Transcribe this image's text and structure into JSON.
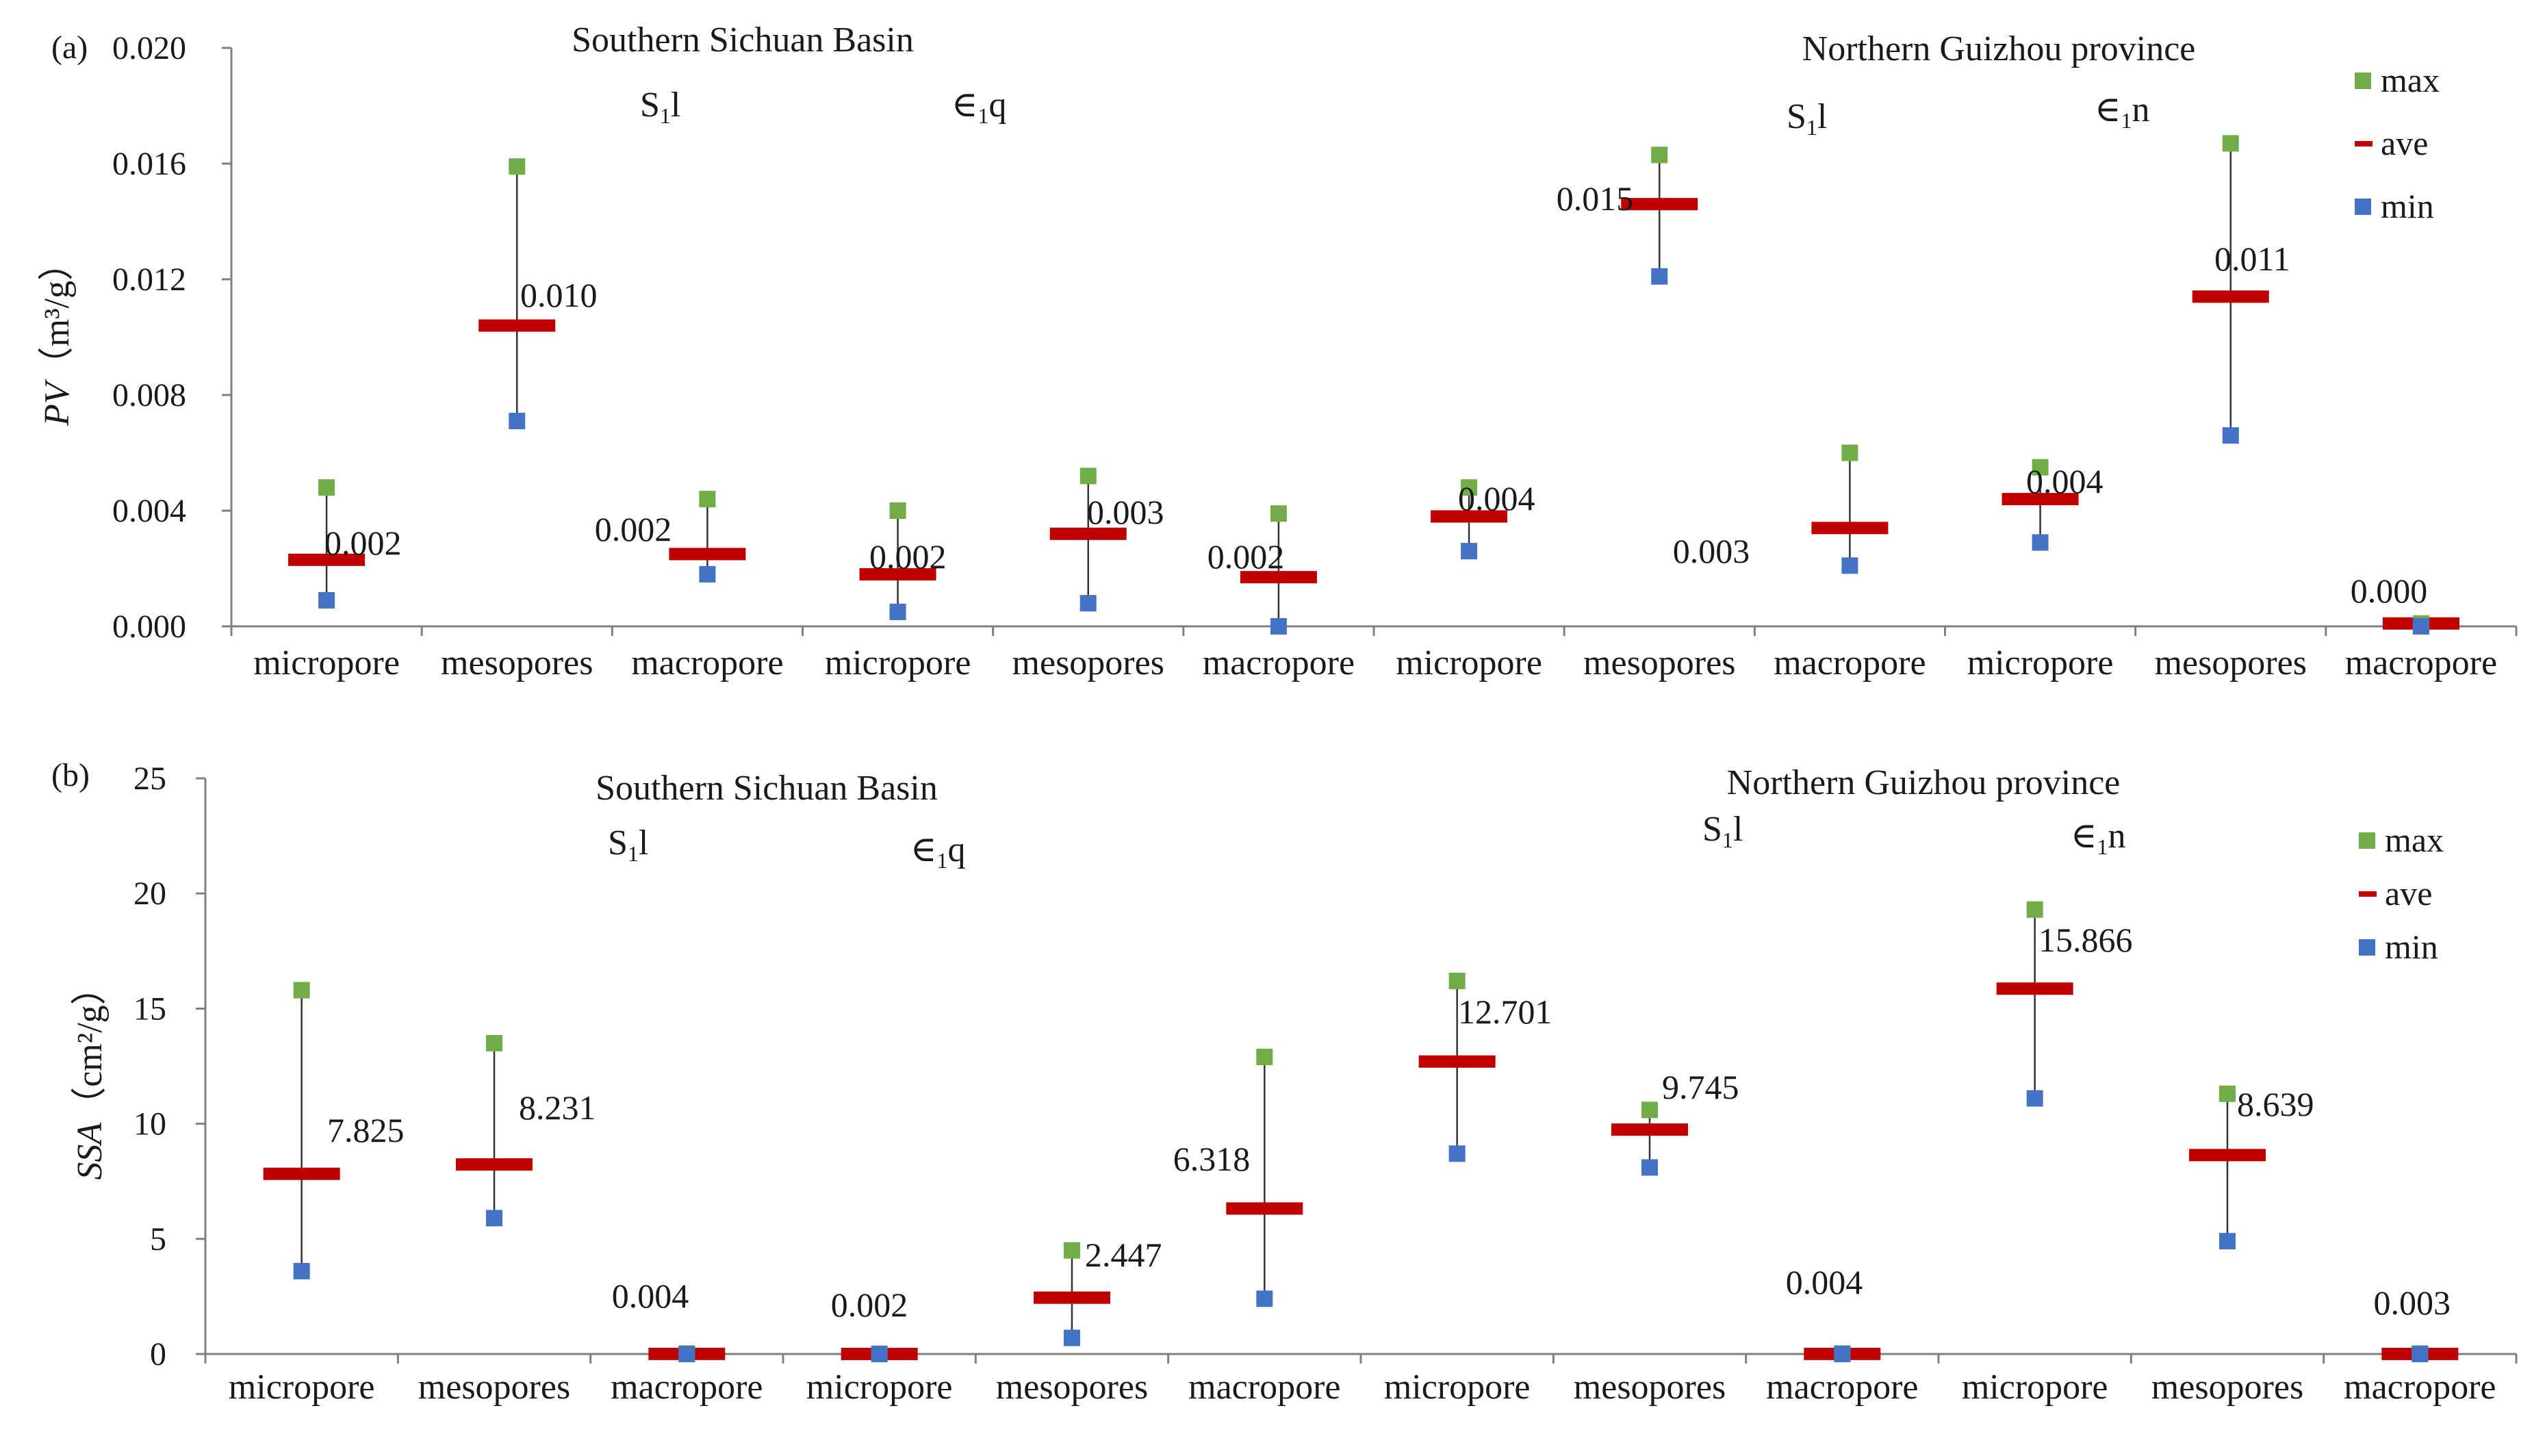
{
  "colors": {
    "max": "#70ad47",
    "ave": "#c00000",
    "min": "#4472c4",
    "axis": "#7f7f7f",
    "whisker": "#333333"
  },
  "chart_data": [
    {
      "type": "range",
      "panel_label": "(a)",
      "ylabel_italic": "PV",
      "ylabel_unit": "（m³/g）",
      "ylim": [
        0,
        0.02
      ],
      "ytick_values": [
        0,
        0.004,
        0.008,
        0.012,
        0.016,
        0.02
      ],
      "ytick_labels": [
        "0.000",
        "0.004",
        "0.008",
        "0.012",
        "0.016",
        "0.020"
      ],
      "region_labels": [
        "Southern Sichuan Basin",
        "Northern Guizhou province"
      ],
      "formation_labels": [
        {
          "main": "S",
          "sub": "1",
          "rest": "l"
        },
        {
          "main": "∈",
          "sub": "1",
          "rest": "q"
        },
        {
          "main": "S",
          "sub": "1",
          "rest": "l"
        },
        {
          "main": "∈",
          "sub": "1",
          "rest": "n"
        }
      ],
      "legend": [
        "max",
        "ave",
        "min"
      ],
      "categories": [
        "micropore",
        "mesopores",
        "macropore",
        "micropore",
        "mesopores",
        "macropore",
        "micropore",
        "mesopores",
        "macropore",
        "micropore",
        "mesopores",
        "macropore"
      ],
      "max": [
        0.0048,
        0.0159,
        0.0044,
        0.004,
        0.0052,
        0.0039,
        0.0048,
        0.0163,
        0.006,
        0.0055,
        0.0167,
        0.0001
      ],
      "ave": [
        0.0023,
        0.0104,
        0.0025,
        0.0018,
        0.0032,
        0.0017,
        0.0038,
        0.0146,
        0.0034,
        0.0044,
        0.0114,
        0.0001
      ],
      "min": [
        0.0009,
        0.0071,
        0.0018,
        0.0005,
        0.0008,
        0.0,
        0.0026,
        0.0121,
        0.0021,
        0.0029,
        0.0066,
        0.0
      ],
      "labels": [
        "0.002",
        "0.010",
        "0.002",
        "0.002",
        "0.003",
        "0.002",
        "0.004",
        "0.015",
        "0.003",
        "0.004",
        "0.011",
        "0.000"
      ]
    },
    {
      "type": "range",
      "panel_label": "(b)",
      "ylabel_italic": "SSA",
      "ylabel_unit": "（cm²/g）",
      "ylim": [
        0,
        25
      ],
      "ytick_values": [
        0,
        5,
        10,
        15,
        20,
        25
      ],
      "ytick_labels": [
        "0",
        "5",
        "10",
        "15",
        "20",
        "25"
      ],
      "region_labels": [
        "Southern Sichuan Basin",
        "Northern Guizhou province"
      ],
      "formation_labels": [
        {
          "main": "S",
          "sub": "1",
          "rest": "l"
        },
        {
          "main": "∈",
          "sub": "1",
          "rest": "q"
        },
        {
          "main": "S",
          "sub": "1",
          "rest": "l"
        },
        {
          "main": "∈",
          "sub": "1",
          "rest": "n"
        }
      ],
      "legend": [
        "max",
        "ave",
        "min"
      ],
      "categories": [
        "micropore",
        "mesopores",
        "macropore",
        "micropore",
        "mesopores",
        "macropore",
        "micropore",
        "mesopores",
        "macropore",
        "micropore",
        "mesopores",
        "macropore"
      ],
      "max": [
        15.8,
        13.5,
        0.02,
        0.01,
        4.5,
        12.9,
        16.2,
        10.6,
        0.02,
        19.3,
        11.3,
        0.02
      ],
      "ave": [
        7.825,
        8.231,
        0.004,
        0.002,
        2.447,
        6.318,
        12.701,
        9.745,
        0.004,
        15.866,
        8.639,
        0.003
      ],
      "min": [
        3.6,
        5.9,
        0.0,
        0.0,
        0.7,
        2.4,
        8.7,
        8.1,
        0.0,
        11.1,
        4.9,
        0.0
      ],
      "labels": [
        "7.825",
        "8.231",
        "0.004",
        "0.002",
        "2.447",
        "6.318",
        "12.701",
        "9.745",
        "0.004",
        "15.866",
        "8.639",
        "0.003"
      ]
    }
  ]
}
